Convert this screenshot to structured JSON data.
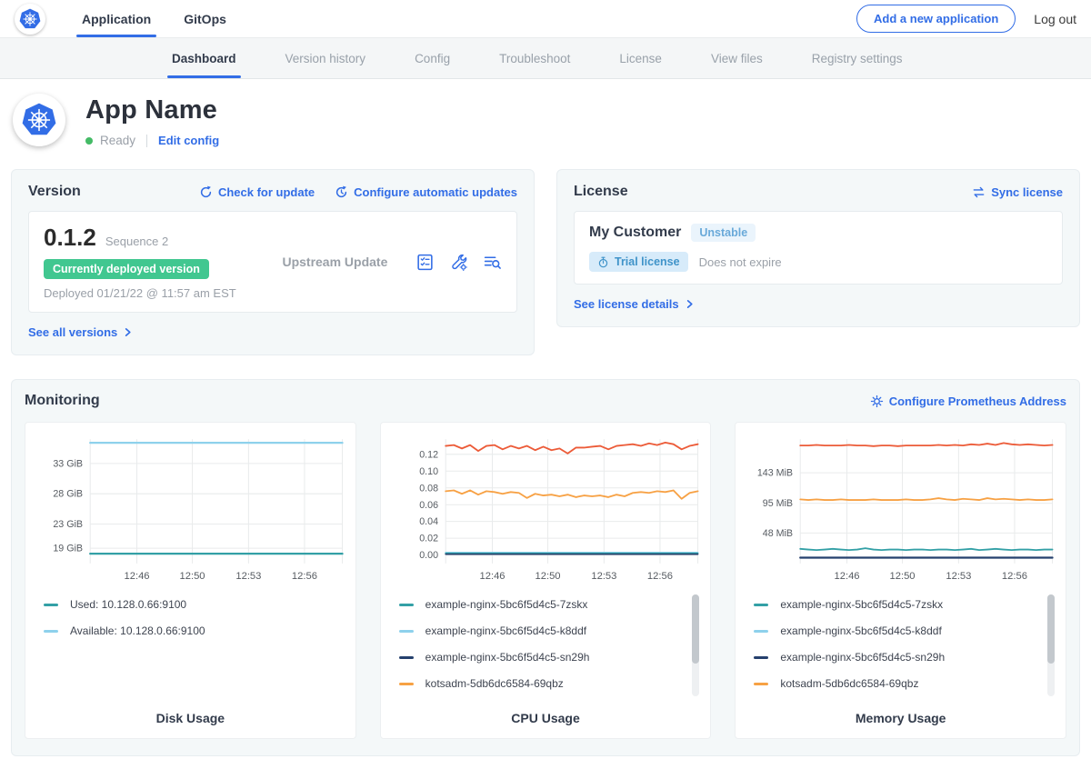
{
  "topnav": {
    "tabs": [
      {
        "label": "Application",
        "active": true
      },
      {
        "label": "GitOps",
        "active": false
      }
    ],
    "add_app_button": "Add a new application",
    "logout": "Log out"
  },
  "subnav": {
    "items": [
      {
        "label": "Dashboard",
        "active": true
      },
      {
        "label": "Version history",
        "active": false
      },
      {
        "label": "Config",
        "active": false
      },
      {
        "label": "Troubleshoot",
        "active": false
      },
      {
        "label": "License",
        "active": false
      },
      {
        "label": "View files",
        "active": false
      },
      {
        "label": "Registry settings",
        "active": false
      }
    ]
  },
  "app_header": {
    "title": "App Name",
    "status": "Ready",
    "edit_config": "Edit config"
  },
  "version_card": {
    "title": "Version",
    "check_update": "Check for update",
    "configure_updates": "Configure automatic updates",
    "version": "0.1.2",
    "sequence": "Sequence 2",
    "deployed_badge": "Currently deployed version",
    "deployed_at": "Deployed 01/21/22 @ 11:57 am EST",
    "source": "Upstream Update",
    "see_all": "See all versions"
  },
  "license_card": {
    "title": "License",
    "sync": "Sync license",
    "customer": "My Customer",
    "channel_badge": "Unstable",
    "type_badge": "Trial license",
    "expiry": "Does not expire",
    "details_link": "See license details"
  },
  "monitoring": {
    "title": "Monitoring",
    "configure_link": "Configure Prometheus Address"
  },
  "icons": {
    "brand": "kubernetes-helm-wheel",
    "check_update": "refresh-circle",
    "auto_updates": "clock-refresh",
    "version_actions": [
      "release-notes-checklist",
      "config-wrench-gear",
      "logs-search"
    ],
    "sync_license": "swap-arrows",
    "trial": "stopwatch",
    "prometheus": "gear",
    "link_chevron": "chevron-right"
  },
  "colors": {
    "accent": "#326de6",
    "deployed_badge": "#41c790",
    "ready_dot": "#44bb66"
  },
  "chart_data": [
    {
      "type": "line",
      "title": "Disk Usage",
      "xlabel": "",
      "ylabel": "",
      "grid": true,
      "legend_position": "below",
      "has_scrollbar": false,
      "ylim": [
        16.5,
        37
      ],
      "x_ticks": [
        {
          "pos": 0.185,
          "label": "12:46"
        },
        {
          "pos": 0.405,
          "label": "12:50"
        },
        {
          "pos": 0.628,
          "label": "12:53"
        },
        {
          "pos": 0.85,
          "label": "12:56"
        }
      ],
      "y_ticks": [
        {
          "value": 19,
          "label": "19 GiB"
        },
        {
          "value": 23,
          "label": "23 GiB"
        },
        {
          "value": 28,
          "label": "28 GiB"
        },
        {
          "value": 33,
          "label": "33 GiB"
        }
      ],
      "series": [
        {
          "color": "#8ed1ec",
          "width": 2.2,
          "values": [
            36.4,
            36.4
          ]
        },
        {
          "color": "#33a0a6",
          "width": 2.2,
          "values": [
            18.1,
            18.1
          ]
        }
      ],
      "legend_items": [
        {
          "label": "Used: 10.128.0.66:9100",
          "color": "#33a0a6"
        },
        {
          "label": "Available: 10.128.0.66:9100",
          "color": "#8ed1ec"
        }
      ]
    },
    {
      "type": "line",
      "title": "CPU Usage",
      "xlabel": "",
      "ylabel": "",
      "grid": true,
      "legend_position": "below",
      "has_scrollbar": true,
      "ylim": [
        -0.01,
        0.138
      ],
      "x_ticks": [
        {
          "pos": 0.185,
          "label": "12:46"
        },
        {
          "pos": 0.405,
          "label": "12:50"
        },
        {
          "pos": 0.628,
          "label": "12:53"
        },
        {
          "pos": 0.85,
          "label": "12:56"
        }
      ],
      "y_ticks": [
        {
          "value": 0,
          "label": "0.00"
        },
        {
          "value": 0.02,
          "label": "0.02"
        },
        {
          "value": 0.04,
          "label": "0.04"
        },
        {
          "value": 0.06,
          "label": "0.06"
        },
        {
          "value": 0.08,
          "label": "0.08"
        },
        {
          "value": 0.1,
          "label": "0.10"
        },
        {
          "value": 0.12,
          "label": "0.12"
        }
      ],
      "series": [
        {
          "color": "#ec5b38",
          "width": 1.8,
          "values": [
            0.13,
            0.131,
            0.127,
            0.131,
            0.124,
            0.13,
            0.131,
            0.126,
            0.13,
            0.127,
            0.13,
            0.125,
            0.129,
            0.125,
            0.127,
            0.121,
            0.128,
            0.128,
            0.129,
            0.13,
            0.126,
            0.13,
            0.131,
            0.132,
            0.13,
            0.133,
            0.131,
            0.134,
            0.132,
            0.126,
            0.13,
            0.132
          ]
        },
        {
          "color": "#f7a144",
          "width": 1.8,
          "values": [
            0.076,
            0.077,
            0.073,
            0.077,
            0.072,
            0.076,
            0.075,
            0.073,
            0.075,
            0.074,
            0.068,
            0.073,
            0.071,
            0.072,
            0.07,
            0.072,
            0.069,
            0.071,
            0.07,
            0.071,
            0.069,
            0.072,
            0.07,
            0.074,
            0.075,
            0.074,
            0.076,
            0.075,
            0.077,
            0.067,
            0.074,
            0.076
          ]
        },
        {
          "color": "#8ed1ec",
          "width": 1.6,
          "values": [
            0.003,
            0.003
          ]
        },
        {
          "color": "#33a0a6",
          "width": 1.6,
          "values": [
            0.002,
            0.002
          ]
        },
        {
          "color": "#25406d",
          "width": 1.6,
          "values": [
            0.001,
            0.001
          ]
        }
      ],
      "legend_items": [
        {
          "label": "example-nginx-5bc6f5d4c5-7zskx",
          "color": "#33a0a6"
        },
        {
          "label": "example-nginx-5bc6f5d4c5-k8ddf",
          "color": "#8ed1ec"
        },
        {
          "label": "example-nginx-5bc6f5d4c5-sn29h",
          "color": "#25406d"
        },
        {
          "label": "kotsadm-5db6dc6584-69qbz",
          "color": "#f7a144"
        }
      ]
    },
    {
      "type": "line",
      "title": "Memory Usage",
      "xlabel": "",
      "ylabel": "",
      "grid": true,
      "legend_position": "below",
      "has_scrollbar": true,
      "ylim": [
        0,
        196
      ],
      "x_ticks": [
        {
          "pos": 0.185,
          "label": "12:46"
        },
        {
          "pos": 0.405,
          "label": "12:50"
        },
        {
          "pos": 0.628,
          "label": "12:53"
        },
        {
          "pos": 0.85,
          "label": "12:56"
        }
      ],
      "y_ticks": [
        {
          "value": 48,
          "label": "48 MiB"
        },
        {
          "value": 95,
          "label": "95 MiB"
        },
        {
          "value": 143,
          "label": "143 MiB"
        }
      ],
      "series": [
        {
          "color": "#ec5b38",
          "width": 1.8,
          "values": [
            186,
            186,
            187,
            186,
            186,
            186,
            187,
            186,
            186,
            185,
            186,
            186,
            185,
            186,
            186,
            186,
            186,
            187,
            186,
            187,
            186,
            188,
            187,
            189,
            187,
            190,
            188,
            187,
            188,
            187,
            186,
            187
          ]
        },
        {
          "color": "#f7a144",
          "width": 1.8,
          "values": [
            101,
            100,
            101,
            100,
            100,
            101,
            100,
            100,
            100,
            101,
            100,
            100,
            100,
            101,
            100,
            100,
            101,
            103,
            101,
            100,
            102,
            101,
            100,
            103,
            101,
            102,
            101,
            100,
            101,
            100,
            100,
            101
          ]
        },
        {
          "color": "#33a0a6",
          "width": 1.8,
          "values": [
            23,
            22,
            21,
            22,
            23,
            22,
            21,
            22,
            24,
            22,
            21,
            22,
            22,
            21,
            22,
            22,
            21,
            22,
            22,
            21,
            22,
            23,
            21,
            22,
            23,
            22,
            21,
            22,
            22,
            21,
            22,
            22
          ]
        },
        {
          "color": "#25406d",
          "width": 2.2,
          "values": [
            9,
            9
          ]
        }
      ],
      "legend_items": [
        {
          "label": "example-nginx-5bc6f5d4c5-7zskx",
          "color": "#33a0a6"
        },
        {
          "label": "example-nginx-5bc6f5d4c5-k8ddf",
          "color": "#8ed1ec"
        },
        {
          "label": "example-nginx-5bc6f5d4c5-sn29h",
          "color": "#25406d"
        },
        {
          "label": "kotsadm-5db6dc6584-69qbz",
          "color": "#f7a144"
        }
      ]
    }
  ]
}
